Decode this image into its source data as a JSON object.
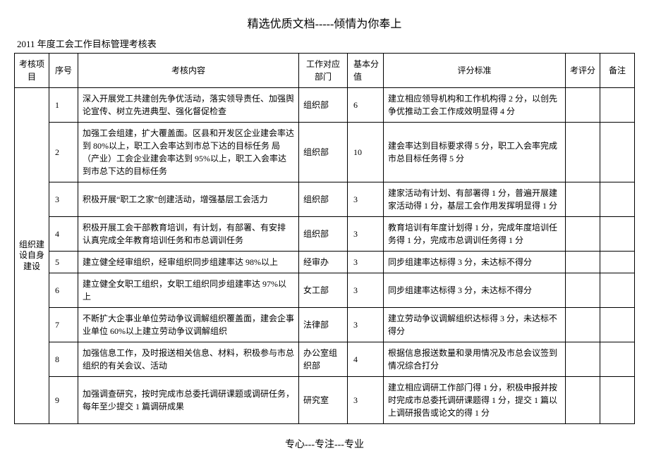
{
  "page_header": "精选优质文档-----倾情为你奉上",
  "table_title": "2011 年度工会工作目标管理考核表",
  "page_footer": "专心---专注---专业",
  "columns": {
    "category": "考核项目",
    "seq": "序号",
    "content": "考核内容",
    "dept": "工作对应部门",
    "base": "基本分值",
    "criteria": "评分标准",
    "score": "考评分",
    "remark": "备注"
  },
  "category_label": "组织建设自身建设",
  "rows": [
    {
      "seq": "1",
      "content": "深入开展党工共建创先争优活动，落实领导责任、加强舆论宣传、树立先进典型、强化督促检查",
      "dept": "组织部",
      "base": "6",
      "criteria": "建立相应领导机构和工作机构得 2 分，以创先争优推动工会工作成效明显得 4 分"
    },
    {
      "seq": "2",
      "content": "加强工会组建，扩大覆盖面。区县和开发区企业建会率达到 80%以上，职工入会率达到市总下达的目标任务  局（产业）工会企业建会率达到 95%以上，职工入会率达到市总下达的目标任务",
      "dept": "组织部",
      "base": "10",
      "criteria": "建会率达到目标要求得 5 分，职工入会率完成市总目标任务得 5 分"
    },
    {
      "seq": "3",
      "content": "积极开展“职工之家”创建活动，增强基层工会活力",
      "dept": "组织部",
      "base": "3",
      "criteria": "建家活动有计划、有部署得 1 分，普遍开展建家活动得 1 分，基层工会作用发挥明显得 1 分"
    },
    {
      "seq": "4",
      "content": "积极开展工会干部教育培训，有计划，有部署、有安排  认真完成全年教育培训任务和市总调训任务",
      "dept": "组织部",
      "base": "3",
      "criteria": "教育培训有年度计划得 1 分，完成年度培训任务得 1 分，完成市总调训任务得 1 分"
    },
    {
      "seq": "5",
      "content": "建立健全经审组织，经审组织同步组建率达 98%以上",
      "dept": "经审办",
      "base": "3",
      "criteria": "同步组建率达标得 3 分，未达标不得分"
    },
    {
      "seq": "6",
      "content": "建立健全女职工组织，女职工组织同步组建率达 97%以上",
      "dept": "女工部",
      "base": "3",
      "criteria": "同步组建率达标得 3 分，未达标不得分"
    },
    {
      "seq": "7",
      "content": "不断扩大企事业单位劳动争议调解组织覆盖面，建会企事业单位 60%以上建立劳动争议调解组织",
      "dept": "法律部",
      "base": "3",
      "criteria": "建立劳动争议调解组织达标得 3 分，未达标不得分"
    },
    {
      "seq": "8",
      "content": "加强信息工作，及时报送相关信息、材料，积极参与市总组织的有关会议、活动",
      "dept": "办公室组织部",
      "base": "4",
      "criteria": "根据信息报送数量和录用情况及市总会议签到情况综合打分"
    },
    {
      "seq": "9",
      "content": "加强调查研究，按时完成市总委托调研课题或调研任务，每年至少提交 1 篇调研成果",
      "dept": "研究室",
      "base": "3",
      "criteria": "建立相应调研工作部门得 1 分，积极申报并按时完成市总委托调研课题得 1 分，提交 1 篇以上调研报告或论文的得 1 分"
    }
  ]
}
